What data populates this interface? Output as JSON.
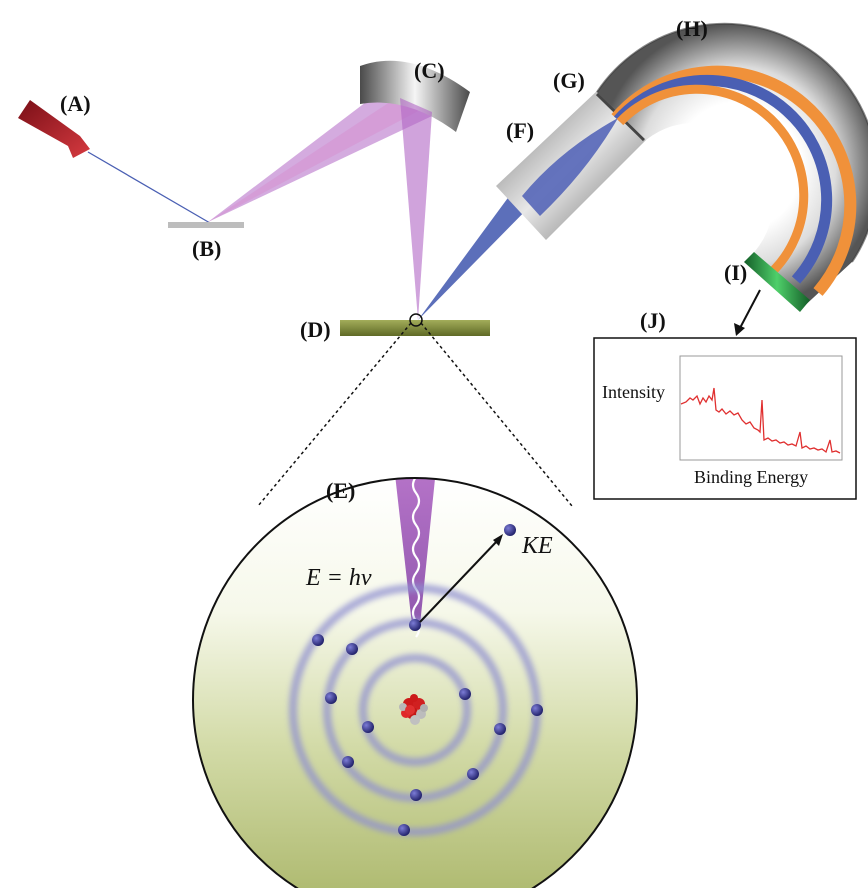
{
  "labels": {
    "a": "(A)",
    "b": "(B)",
    "c": "(C)",
    "d": "(D)",
    "e": "(E)",
    "f": "(F)",
    "g": "(G)",
    "h": "(H)",
    "i": "(I)",
    "j": "(J)"
  },
  "photon_equation": "E = hν",
  "kinetic_energy": "KE",
  "spectrum": {
    "y_label": "Intensity",
    "x_label": "Binding Energy"
  },
  "colors": {
    "laser": "#b3202a",
    "beam": "#b066c4",
    "electron_beam": "#4a5fb3",
    "sample": "#7f8c3a",
    "detector": "#1f8a3a",
    "spectrum_line": "#e03030",
    "electron": "#2a2a7a",
    "analyzer_inner": "#f0913a"
  }
}
